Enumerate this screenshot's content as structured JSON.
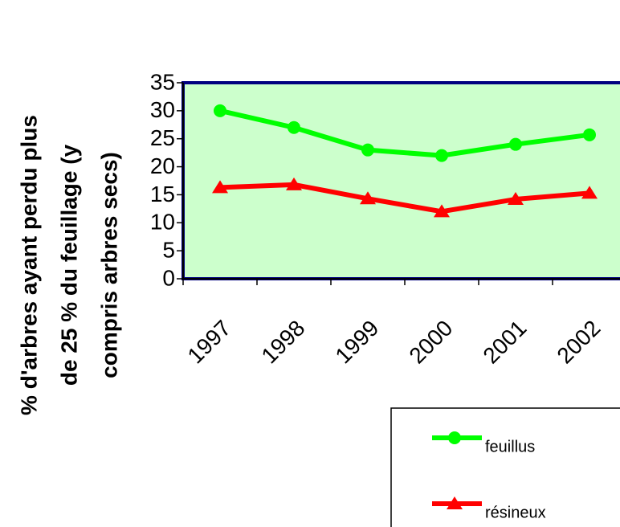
{
  "chart_data": {
    "type": "line",
    "ylabel": [
      "% d'arbres ayant perdu plus",
      "de 25 % du feuillage (y",
      "compris arbres secs)"
    ],
    "categories": [
      "1997",
      "1998",
      "1999",
      "2000",
      "2001",
      "2002"
    ],
    "series": [
      {
        "name": "feuillus",
        "color": "#00ff00",
        "marker": "circle",
        "values": [
          30,
          27,
          23,
          22,
          24,
          25.7
        ]
      },
      {
        "name": "résineux",
        "color": "#ff0000",
        "marker": "triangle",
        "values": [
          16.3,
          16.8,
          14.3,
          12,
          14.2,
          15.3
        ]
      }
    ],
    "ylim": [
      0,
      35
    ],
    "yticks": [
      0,
      5,
      10,
      15,
      20,
      25,
      30,
      35
    ],
    "plot_background": "#ccffcc",
    "legend": "bottom-right"
  }
}
